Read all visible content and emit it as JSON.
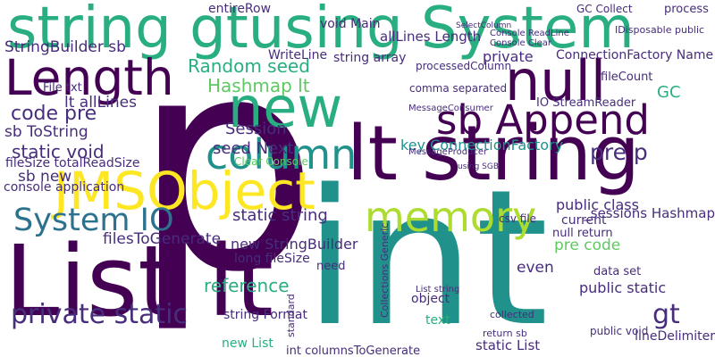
{
  "title": "Word cloud",
  "palette": {
    "purple_dark": "#440154",
    "purple": "#472d7b",
    "blue": "#3b528b",
    "teal_blue": "#2c728e",
    "teal": "#21918c",
    "green_teal": "#28ae80",
    "green": "#5ec962",
    "lime": "#addc30",
    "yellow": "#fde725"
  },
  "words": [
    "p",
    "int",
    "List lt",
    "string gtusing System",
    "lt string",
    "new",
    "null",
    "Length",
    "JMSObject",
    "sb Append",
    "column",
    "memory",
    "System IO",
    "private static",
    "StringBuilder sb",
    "sb ToString",
    "static void",
    "code pre",
    "Random seed",
    "Hashmap lt",
    "Session",
    "WriteLine",
    "string array",
    "private",
    "ConnectionFactory Name",
    "fileCount",
    "GC",
    "processedColumn",
    "comma separated",
    "IO StreamReader",
    "seed Next",
    "Clear Console",
    "key ConnectionFactory",
    "pre p",
    "public class",
    "null return",
    "current",
    "csv file",
    "pre code",
    "static string",
    "_sessions Hashmap",
    "new StringBuilder",
    "long fileSize",
    "filesToGenerate",
    "reference",
    "need",
    "even",
    "public static",
    "data set",
    "object",
    "gt",
    "string Format",
    "new List",
    "lineDelimiter",
    "int columnsToGenerate",
    "static List",
    "text",
    "fileSize totalReadSize",
    "sb new",
    "console application",
    "lt allLines",
    "File txt",
    "entireRow",
    "void Main",
    "allLines Length",
    "process",
    "GC Collect",
    "Console Clear",
    "Console ReadLine",
    "SelectColumn",
    "IDisposable public",
    "public void",
    "collected",
    "Collections Generic",
    "return sb",
    "standard",
    "List string",
    "MessageConsumer",
    "MessageProducer",
    "using SGB"
  ]
}
